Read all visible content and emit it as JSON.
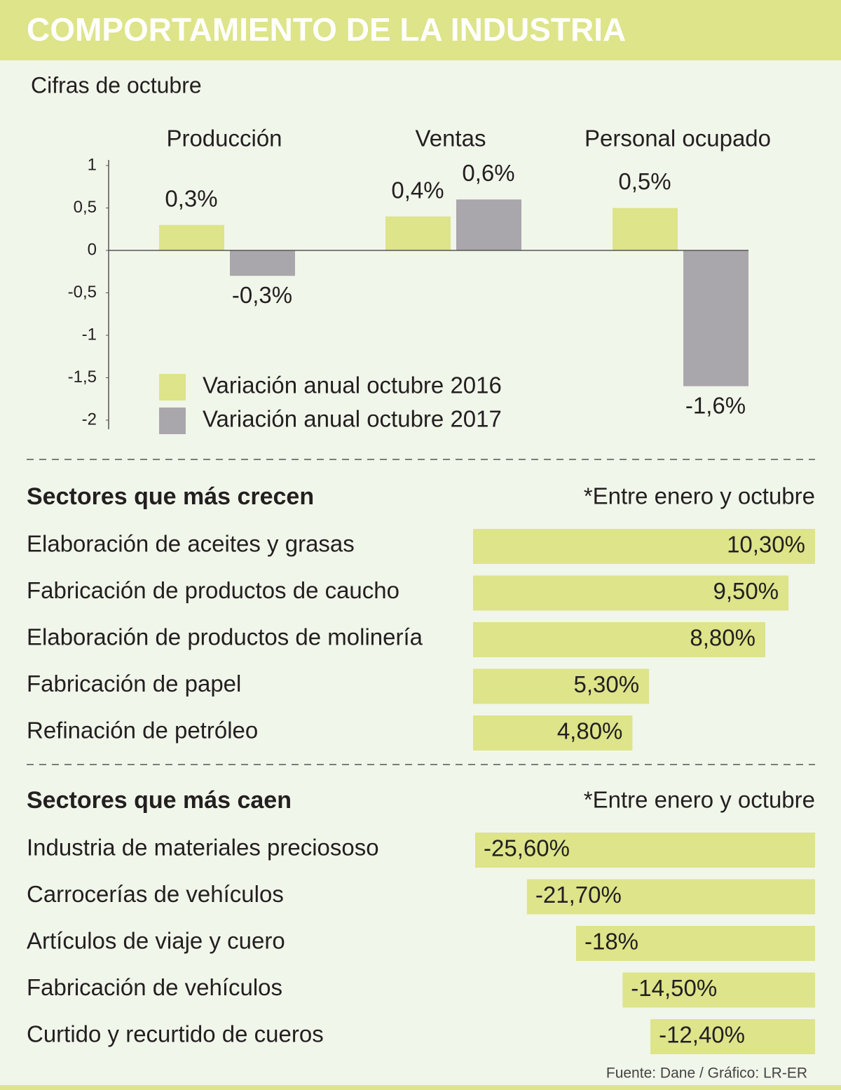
{
  "title": "COMPORTAMIENTO DE LA INDUSTRIA",
  "source": "Fuente: Dane / Gráfico: LR-ER",
  "chart_data": [
    {
      "type": "bar",
      "subtitle": "Cifras de octubre",
      "categories": [
        "Producción",
        "Ventas",
        "Personal ocupado"
      ],
      "series": [
        {
          "name": "Variación anual octubre 2016",
          "color": "#dde48a",
          "values": [
            0.3,
            0.4,
            0.5
          ],
          "value_labels": [
            "0,3%",
            "0,4%",
            "0,5%"
          ]
        },
        {
          "name": "Variación anual octubre 2017",
          "color": "#a9a7ab",
          "values": [
            -0.3,
            0.6,
            -1.6
          ],
          "value_labels": [
            "-0,3%",
            "0,6%",
            "-1,6%"
          ]
        }
      ],
      "ylim": [
        -2,
        1
      ],
      "yticks": [
        1,
        {
          "value": 0.5,
          "label": "0,5"
        },
        0,
        {
          "value": -0.5,
          "label": "-0,5"
        },
        -1,
        {
          "value": -1.5,
          "label": "-1,5"
        },
        -2
      ],
      "legend": "lower left"
    },
    {
      "type": "hbar",
      "title": "Sectores que más crecen",
      "note": "*Entre enero y octubre",
      "color": "#dde48a",
      "categories": [
        "Elaboración de aceites y grasas",
        "Fabricación de productos de caucho",
        "Elaboración de productos de molinería",
        "Fabricación de papel",
        "Refinación de petróleo"
      ],
      "values": [
        10.3,
        9.5,
        8.8,
        5.3,
        4.8
      ],
      "value_labels": [
        "10,30%",
        "9,50%",
        "8,80%",
        "5,30%",
        "4,80%"
      ]
    },
    {
      "type": "hbar",
      "title": "Sectores que más caen",
      "note": "*Entre enero y octubre",
      "color": "#dde48a",
      "categories": [
        "Industria de materiales preciososo",
        "Carrocerías de vehículos",
        "Artículos de viaje y cuero",
        "Fabricación de vehículos",
        "Curtido y recurtido de cueros"
      ],
      "values": [
        -25.6,
        -21.7,
        -18,
        -14.5,
        -12.4
      ],
      "value_labels": [
        "-25,60%",
        "-21,70%",
        "-18%",
        "-14,50%",
        "-12,40%"
      ]
    }
  ]
}
